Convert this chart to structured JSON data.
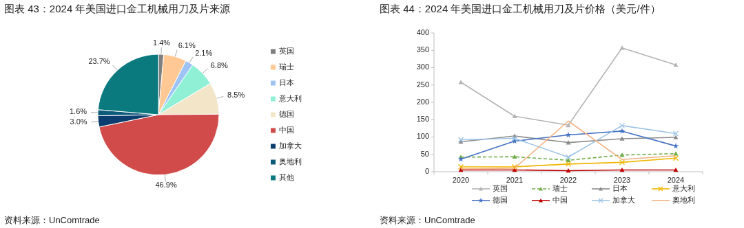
{
  "chart_data": [
    {
      "type": "pie",
      "title": "图表 43：2024 年美国进口金工机械用刀及片来源",
      "categories": [
        "英国",
        "瑞士",
        "日本",
        "意大利",
        "德国",
        "中国",
        "加拿大",
        "奥地利",
        "其他"
      ],
      "values": [
        1.4,
        6.1,
        2.1,
        6.8,
        8.5,
        46.9,
        3.0,
        1.6,
        23.7
      ],
      "colors": [
        "#7f7f7f",
        "#ffc894",
        "#9dc3f5",
        "#8ff0d6",
        "#f3e6c8",
        "#d24b4b",
        "#0b3e6e",
        "#0c5a7a",
        "#0b7a7e"
      ],
      "value_labels": [
        "1.4%",
        "6.1%",
        "2.1%",
        "6.8%",
        "8.5%",
        "46.9%",
        "3.0%",
        "1.6%",
        "23.7%"
      ],
      "legend": "right",
      "annotations": [
        "资料来源：UnComtrade"
      ]
    },
    {
      "type": "line",
      "title": "图表 44：2024 年美国进口金工机械用刀及片价格（美元/件）",
      "categories": [
        "2020",
        "2021",
        "2022",
        "2023",
        "2024"
      ],
      "ylim": [
        0,
        400
      ],
      "yticks": [
        0,
        50,
        100,
        150,
        200,
        250,
        300,
        350,
        400
      ],
      "grid": false,
      "legend": "bottom",
      "annotations": [
        "资料来源：UnComtrade"
      ],
      "series": [
        {
          "name": "英国",
          "color": "#b4b4b4",
          "marker": "triangle",
          "values": [
            258,
            160,
            134,
            357,
            308
          ]
        },
        {
          "name": "瑞士",
          "color": "#70ad47",
          "marker": "triangle",
          "line_style": "dashed",
          "values": [
            42,
            43,
            33,
            48,
            52
          ]
        },
        {
          "name": "日本",
          "color": "#8c8c8c",
          "marker": "triangle",
          "values": [
            86,
            103,
            84,
            95,
            99
          ]
        },
        {
          "name": "意大利",
          "color": "#f0b400",
          "marker": "cross",
          "values": [
            14,
            14,
            22,
            27,
            39
          ]
        },
        {
          "name": "德国",
          "color": "#4472c4",
          "marker": "star",
          "values": [
            36,
            88,
            106,
            117,
            74
          ]
        },
        {
          "name": "中国",
          "color": "#c00000",
          "marker": "triangle",
          "values": [
            5,
            5,
            3,
            5,
            5
          ]
        },
        {
          "name": "加拿大",
          "color": "#9dc3e6",
          "marker": "cross",
          "values": [
            92,
            96,
            42,
            133,
            110
          ]
        },
        {
          "name": "奥地利",
          "color": "#f4b183",
          "marker": "none",
          "values": [
            8,
            10,
            146,
            35,
            46
          ]
        }
      ]
    }
  ]
}
